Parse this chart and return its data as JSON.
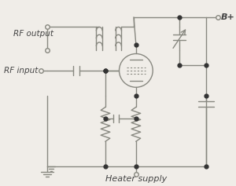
{
  "bg_color": "#f0ede8",
  "line_color": "#888880",
  "dot_color": "#333333",
  "text_color": "#444444",
  "title": "Heater supply",
  "label_rf_output": "RF output",
  "label_rf_input": "RF input",
  "label_b_plus": "B+",
  "label_heater": "Heater supply",
  "figsize": [
    3.0,
    2.37
  ],
  "dpi": 100
}
